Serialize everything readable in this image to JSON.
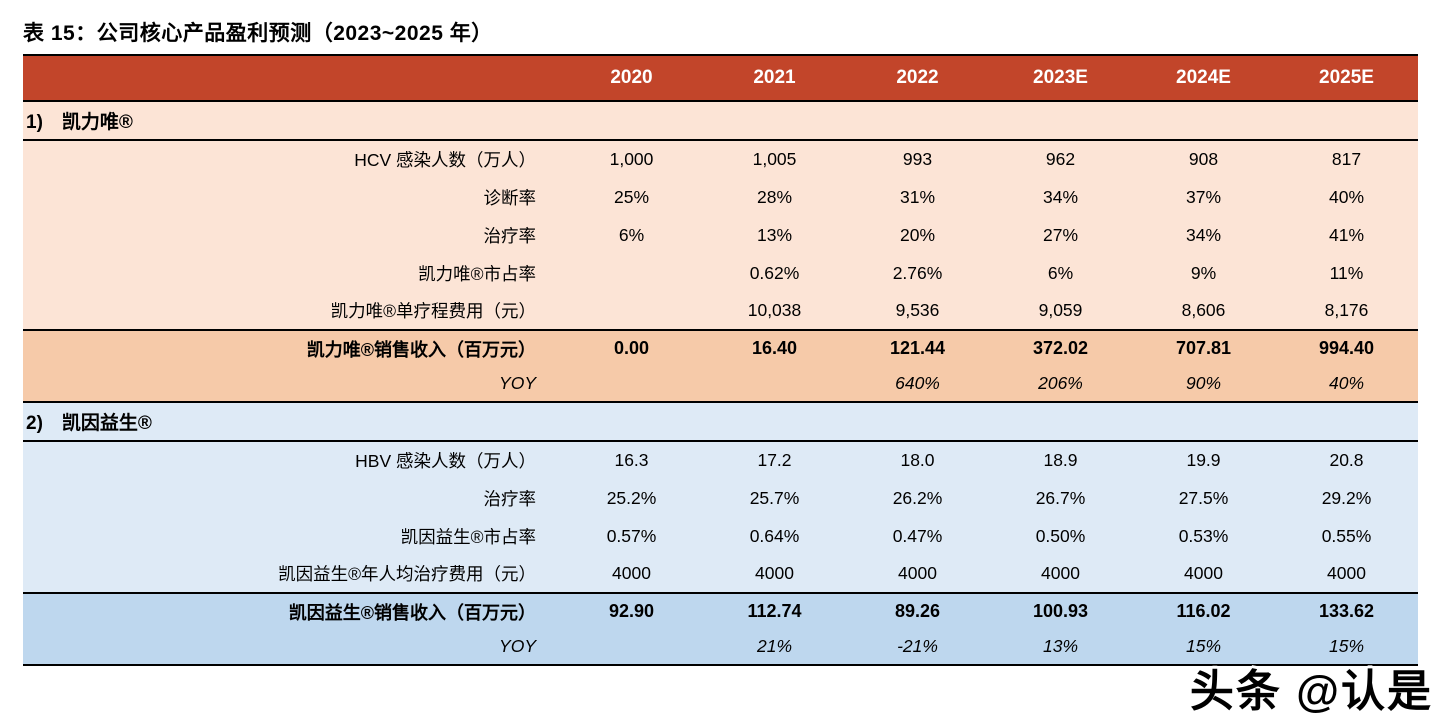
{
  "title": "表 15：公司核心产品盈利预测（2023~2025 年）",
  "watermark": "头条 @认是",
  "colors": {
    "header_bg": "#C2452A",
    "header_text": "#FFFFFF",
    "section1_row_bg": "#FCE4D6",
    "section1_summary_bg": "#F6CAA9",
    "section2_row_bg": "#DEEAF6",
    "section2_summary_bg": "#BED7EE",
    "border": "#000000"
  },
  "table": {
    "years": [
      "2020",
      "2021",
      "2022",
      "2023E",
      "2024E",
      "2025E"
    ],
    "sections": [
      {
        "header": "1)　凯力唯®",
        "theme": "orange",
        "rows": [
          {
            "label": "HCV 感染人数（万人）",
            "values": [
              "1,000",
              "1,005",
              "993",
              "962",
              "908",
              "817"
            ]
          },
          {
            "label": "诊断率",
            "values": [
              "25%",
              "28%",
              "31%",
              "34%",
              "37%",
              "40%"
            ]
          },
          {
            "label": "治疗率",
            "values": [
              "6%",
              "13%",
              "20%",
              "27%",
              "34%",
              "41%"
            ]
          },
          {
            "label": "凯力唯®市占率",
            "values": [
              "",
              "0.62%",
              "2.76%",
              "6%",
              "9%",
              "11%"
            ]
          },
          {
            "label": "凯力唯®单疗程费用（元）",
            "values": [
              "",
              "10,038",
              "9,536",
              "9,059",
              "8,606",
              "8,176"
            ]
          }
        ],
        "summary_rows": [
          {
            "label": "凯力唯®销售收入（百万元）",
            "style": "bold",
            "values": [
              "0.00",
              "16.40",
              "121.44",
              "372.02",
              "707.81",
              "994.40"
            ]
          },
          {
            "label": "YOY",
            "style": "italic",
            "values": [
              "",
              "",
              "640%",
              "206%",
              "90%",
              "40%"
            ]
          }
        ]
      },
      {
        "header": "2)　凯因益生®",
        "theme": "blue",
        "rows": [
          {
            "label": "HBV 感染人数（万人）",
            "values": [
              "16.3",
              "17.2",
              "18.0",
              "18.9",
              "19.9",
              "20.8"
            ]
          },
          {
            "label": "治疗率",
            "values": [
              "25.2%",
              "25.7%",
              "26.2%",
              "26.7%",
              "27.5%",
              "29.2%"
            ]
          },
          {
            "label": "凯因益生®市占率",
            "values": [
              "0.57%",
              "0.64%",
              "0.47%",
              "0.50%",
              "0.53%",
              "0.55%"
            ]
          },
          {
            "label": "凯因益生®年人均治疗费用（元）",
            "values": [
              "4000",
              "4000",
              "4000",
              "4000",
              "4000",
              "4000"
            ]
          }
        ],
        "summary_rows": [
          {
            "label": "凯因益生®销售收入（百万元）",
            "style": "bold",
            "values": [
              "92.90",
              "112.74",
              "89.26",
              "100.93",
              "116.02",
              "133.62"
            ]
          },
          {
            "label": "YOY",
            "style": "italic",
            "values": [
              "",
              "21%",
              "-21%",
              "13%",
              "15%",
              "15%"
            ]
          }
        ]
      }
    ]
  }
}
